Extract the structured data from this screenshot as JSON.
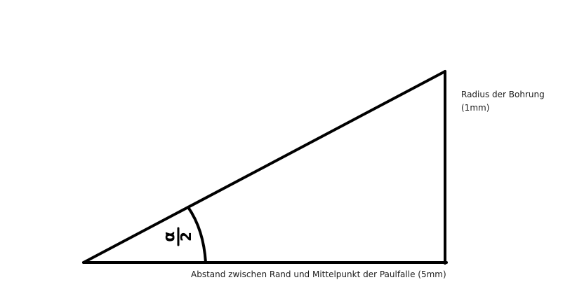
{
  "diagram": {
    "angle_symbol": "α",
    "angle_divisor": "2",
    "labels": {
      "radius_line1": "Radius der Bohrung",
      "radius_line2": "(1mm)",
      "distance": "Abstand zwischen Rand und Mittelpunkt der Paulfalle (5mm)"
    },
    "colors": {
      "stroke": "#000000",
      "background": "#ffffff",
      "text": "#1a1a1a"
    }
  }
}
